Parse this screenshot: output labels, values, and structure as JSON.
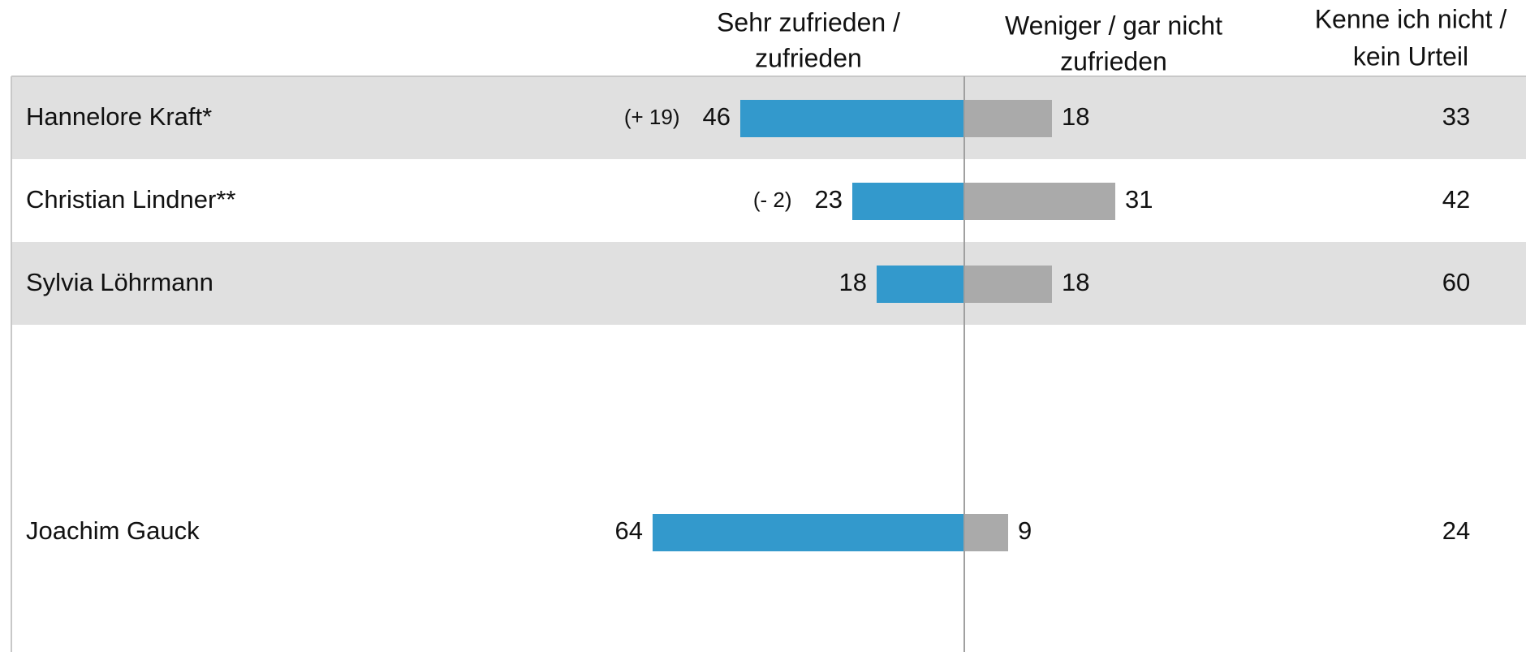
{
  "chart_data": {
    "type": "diverging_bar",
    "column_headers": [
      [
        "Sehr zufrieden /",
        "zufrieden"
      ],
      [
        "Weniger / gar nicht",
        "zufrieden"
      ],
      [
        "Kenne ich nicht /",
        "kein Urteil"
      ]
    ],
    "categories": [
      "Hannelore Kraft*",
      "Christian Lindner**",
      "Sylvia Löhrmann",
      null,
      null,
      "Joachim Gauck",
      null
    ],
    "series": [
      {
        "color": "#3399cc",
        "direction": "left",
        "values": [
          46,
          23,
          18,
          null,
          null,
          64,
          null
        ]
      },
      {
        "color": "#aaaaaa",
        "direction": "right",
        "values": [
          18,
          31,
          18,
          null,
          null,
          9,
          null
        ]
      }
    ],
    "unknown": {
      "values": [
        33,
        42,
        60,
        null,
        null,
        24,
        null
      ]
    },
    "changes": {
      "values": [
        19,
        -2,
        null,
        null,
        null,
        null,
        null
      ],
      "value_labels": [
        "(+ 19)",
        "(- 2)",
        null,
        null,
        null,
        null,
        null
      ]
    },
    "xlim": [
      -100,
      100
    ]
  }
}
